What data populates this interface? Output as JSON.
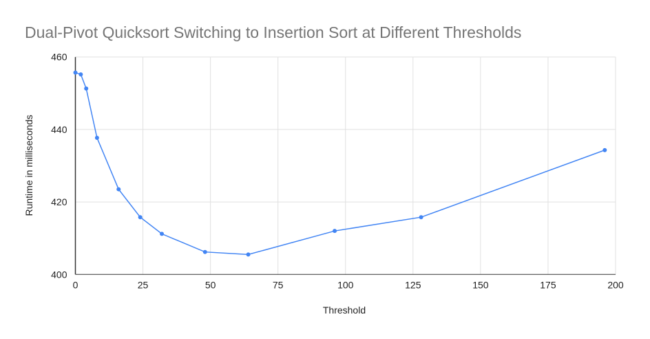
{
  "chart_data": {
    "type": "line",
    "title": "Dual-Pivot Quicksort Switching to Insertion Sort at Different Thresholds",
    "xlabel": "Threshold",
    "ylabel": "Runtime in milliseconds",
    "xlim": [
      0,
      200
    ],
    "ylim": [
      400,
      460
    ],
    "xticks": [
      "0",
      "25",
      "50",
      "75",
      "100",
      "125",
      "150",
      "175",
      "200"
    ],
    "yticks": [
      "400",
      "420",
      "440",
      "460"
    ],
    "grid": true,
    "line_color": "#4285f4",
    "series": [
      {
        "x": [
          0,
          2,
          4,
          8,
          16,
          24,
          32,
          48,
          64,
          96,
          128,
          196
        ],
        "y": [
          455.7,
          455.2,
          451.3,
          437.7,
          423.5,
          415.8,
          411.2,
          406.2,
          405.5,
          412.0,
          415.8,
          434.3
        ]
      }
    ]
  }
}
